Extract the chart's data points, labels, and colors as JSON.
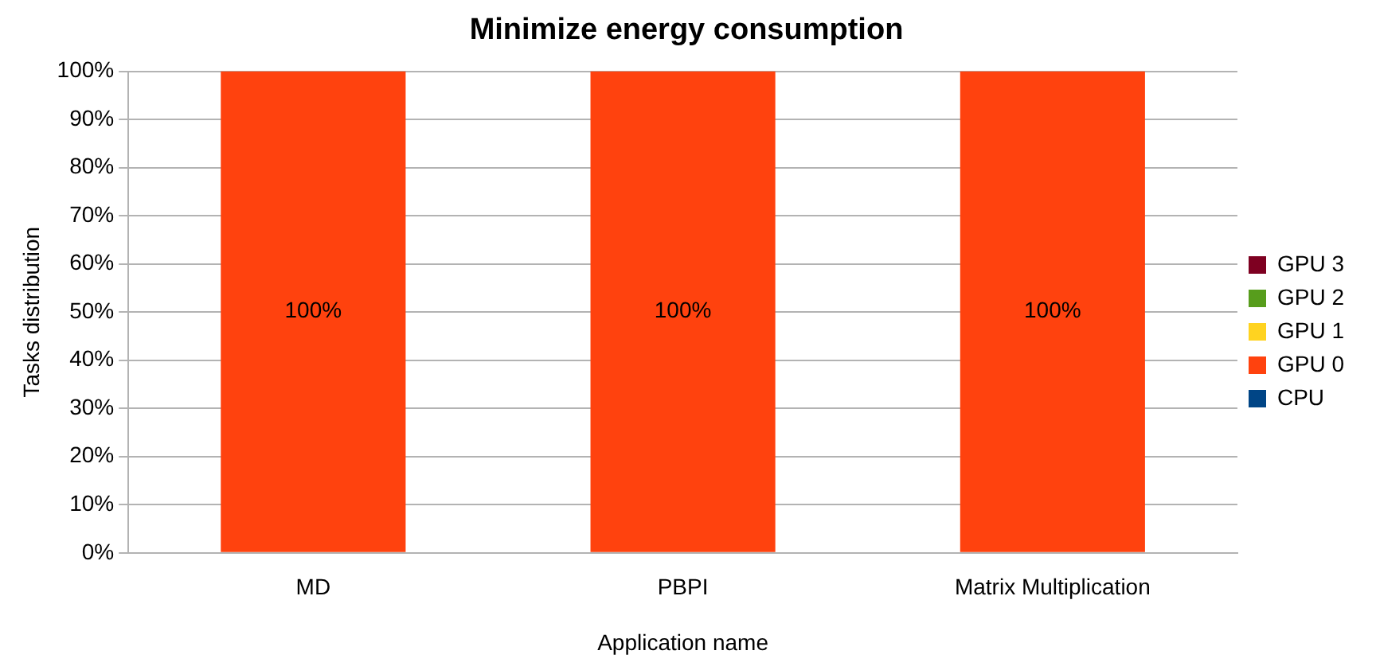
{
  "chart_data": {
    "type": "bar",
    "title": "Minimize energy consumption",
    "xlabel": "Application name",
    "ylabel": "Tasks distribution",
    "categories": [
      "MD",
      "PBPI",
      "Matrix Multiplication"
    ],
    "stacked": true,
    "series": [
      {
        "name": "CPU",
        "color": "#004586",
        "values": [
          0,
          0,
          0
        ]
      },
      {
        "name": "GPU 0",
        "color": "#ff420e",
        "values": [
          100,
          100,
          100
        ],
        "value_labels": [
          "100%",
          "100%",
          "100%"
        ]
      },
      {
        "name": "GPU 1",
        "color": "#ffd320",
        "values": [
          0,
          0,
          0
        ]
      },
      {
        "name": "GPU 2",
        "color": "#579d1c",
        "values": [
          0,
          0,
          0
        ]
      },
      {
        "name": "GPU 3",
        "color": "#7e0021",
        "values": [
          0,
          0,
          0
        ]
      }
    ],
    "ylim": [
      0,
      100
    ],
    "yticks": [
      {
        "value": 0,
        "label": "0%"
      },
      {
        "value": 10,
        "label": "10%"
      },
      {
        "value": 20,
        "label": "20%"
      },
      {
        "value": 30,
        "label": "30%"
      },
      {
        "value": 40,
        "label": "40%"
      },
      {
        "value": 50,
        "label": "50%"
      },
      {
        "value": 60,
        "label": "60%"
      },
      {
        "value": 70,
        "label": "70%"
      },
      {
        "value": 80,
        "label": "80%"
      },
      {
        "value": 90,
        "label": "90%"
      },
      {
        "value": 100,
        "label": "100%"
      }
    ],
    "grid": "y",
    "legend": "right"
  }
}
